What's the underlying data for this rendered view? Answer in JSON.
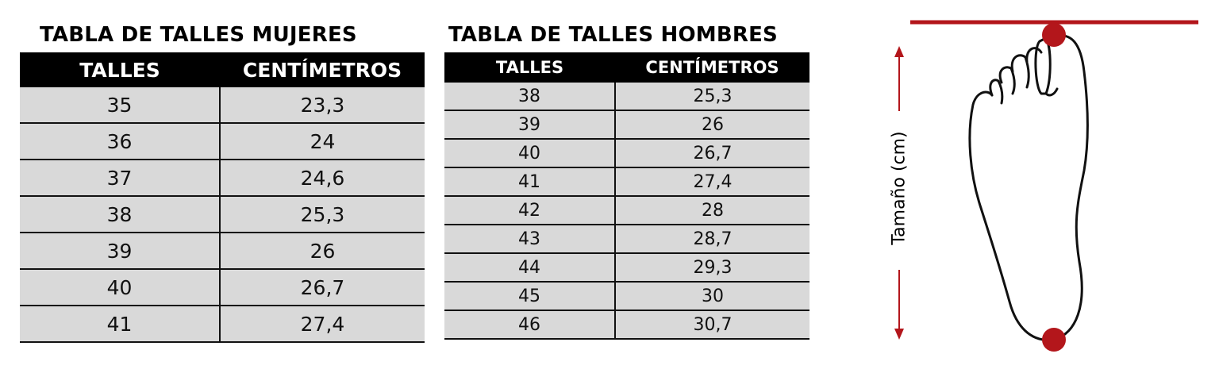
{
  "women": {
    "title": "TABLA DE TALLES MUJERES",
    "headers": [
      "TALLES",
      "CENTÍMETROS"
    ],
    "rows": [
      [
        "35",
        "23,3"
      ],
      [
        "36",
        "24"
      ],
      [
        "37",
        "24,6"
      ],
      [
        "38",
        "25,3"
      ],
      [
        "39",
        "26"
      ],
      [
        "40",
        "26,7"
      ],
      [
        "41",
        "27,4"
      ]
    ]
  },
  "men": {
    "title": "TABLA DE TALLES HOMBRES",
    "headers": [
      "TALLES",
      "CENTÍMETROS"
    ],
    "rows": [
      [
        "38",
        "25,3"
      ],
      [
        "39",
        "26"
      ],
      [
        "40",
        "26,7"
      ],
      [
        "41",
        "27,4"
      ],
      [
        "42",
        "28"
      ],
      [
        "43",
        "28,7"
      ],
      [
        "44",
        "29,3"
      ],
      [
        "45",
        "30"
      ],
      [
        "46",
        "30,7"
      ]
    ]
  },
  "diagram": {
    "measure_label": "Tamaño (cm)",
    "icon": "foot-outline-icon",
    "accent_color": "#b3161b"
  }
}
